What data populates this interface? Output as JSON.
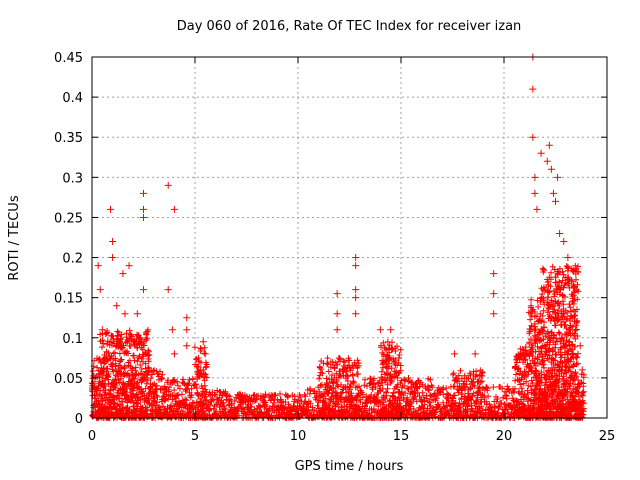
{
  "chart_data": {
    "type": "scatter",
    "title": "Day 060 of 2016, Rate Of TEC Index for receiver izan",
    "xlabel": "GPS time / hours",
    "ylabel": "ROTI / TECUs",
    "xlim": [
      0,
      25
    ],
    "ylim": [
      0,
      0.45
    ],
    "x_ticks": [
      0,
      5,
      10,
      15,
      20,
      25
    ],
    "x_tick_labels": [
      "0",
      "5",
      "10",
      "15",
      "20",
      "25"
    ],
    "y_ticks": [
      0,
      0.05,
      0.1,
      0.15,
      0.2,
      0.25,
      0.3,
      0.35,
      0.4,
      0.45
    ],
    "y_tick_labels": [
      "0",
      "0.05",
      "0.1",
      "0.15",
      "0.2",
      "0.25",
      "0.3",
      "0.35",
      "0.4",
      "0.45"
    ],
    "grid": true,
    "marker": "+",
    "marker_color": "#ff0000",
    "series": [
      {
        "points": [
          [
            0.3,
            0.19
          ],
          [
            0.4,
            0.16
          ],
          [
            0.5,
            0.11
          ],
          [
            0.9,
            0.26
          ],
          [
            1.0,
            0.22
          ],
          [
            1.0,
            0.2
          ],
          [
            1.2,
            0.14
          ],
          [
            1.5,
            0.18
          ],
          [
            1.6,
            0.13
          ],
          [
            1.8,
            0.19
          ],
          [
            2.2,
            0.13
          ],
          [
            2.5,
            0.28
          ],
          [
            2.5,
            0.26
          ],
          [
            2.5,
            0.25
          ],
          [
            2.5,
            0.16
          ],
          [
            3.7,
            0.29
          ],
          [
            3.7,
            0.16
          ],
          [
            3.9,
            0.11
          ],
          [
            4.0,
            0.26
          ],
          [
            4.0,
            0.08
          ],
          [
            4.6,
            0.125
          ],
          [
            4.6,
            0.11
          ],
          [
            4.6,
            0.09
          ],
          [
            5.4,
            0.095
          ],
          [
            5.5,
            0.08
          ],
          [
            11.9,
            0.155
          ],
          [
            11.9,
            0.13
          ],
          [
            11.9,
            0.11
          ],
          [
            12.8,
            0.2
          ],
          [
            12.8,
            0.19
          ],
          [
            12.8,
            0.16
          ],
          [
            12.8,
            0.15
          ],
          [
            12.8,
            0.13
          ],
          [
            14.0,
            0.11
          ],
          [
            14.5,
            0.11
          ],
          [
            17.6,
            0.08
          ],
          [
            18.6,
            0.08
          ],
          [
            19.5,
            0.18
          ],
          [
            19.5,
            0.155
          ],
          [
            19.5,
            0.13
          ],
          [
            21.4,
            0.45
          ],
          [
            21.4,
            0.41
          ],
          [
            21.4,
            0.35
          ],
          [
            21.5,
            0.3
          ],
          [
            21.5,
            0.28
          ],
          [
            21.6,
            0.26
          ],
          [
            21.8,
            0.33
          ],
          [
            22.1,
            0.32
          ],
          [
            22.2,
            0.34
          ],
          [
            22.3,
            0.31
          ],
          [
            22.4,
            0.28
          ],
          [
            22.5,
            0.27
          ],
          [
            22.6,
            0.3
          ],
          [
            22.7,
            0.23
          ],
          [
            22.9,
            0.22
          ],
          [
            23.1,
            0.2
          ],
          [
            23.3,
            0.17
          ],
          [
            23.5,
            0.12
          ],
          [
            23.7,
            0.09
          ],
          [
            23.8,
            0.06
          ]
        ]
      }
    ]
  }
}
